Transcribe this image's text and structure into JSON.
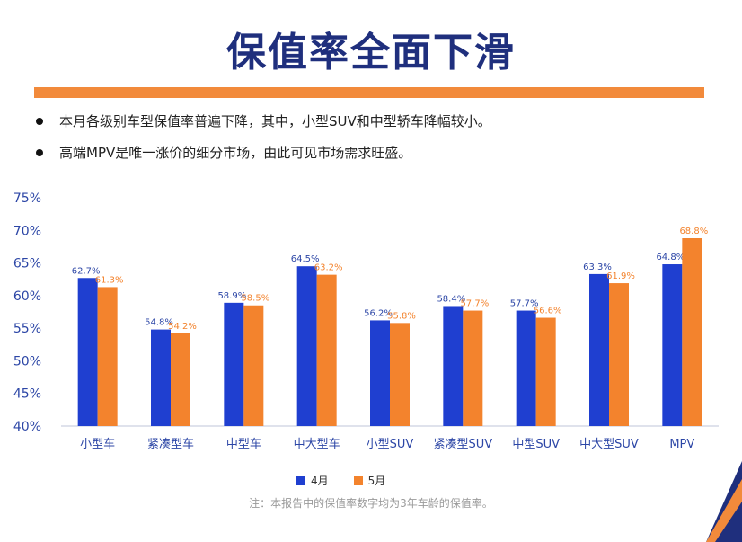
{
  "title": "保值率全面下滑",
  "bullets": [
    "本月各级别车型保值率普遍下降，其中，小型SUV和中型轿车降幅较小。",
    "高端MPV是唯一涨价的细分市场，由此可见市场需求旺盛。"
  ],
  "note": "注：本报告中的保值率数字均为3年车龄的保值率。",
  "colors": {
    "accent": "#f28a3b",
    "title": "#1f2f7d",
    "series_april": "#1f3fd0",
    "series_may": "#f3832d",
    "axis_text": "#2c46a6"
  },
  "chart_data": {
    "type": "bar",
    "categories": [
      "小型车",
      "紧凑型车",
      "中型车",
      "中大型车",
      "小型SUV",
      "紧凑型SUV",
      "中型SUV",
      "中大型SUV",
      "MPV"
    ],
    "series": [
      {
        "name": "4月",
        "values": [
          62.7,
          54.8,
          58.9,
          64.5,
          56.2,
          58.4,
          57.7,
          63.3,
          64.8
        ],
        "labels": [
          "62.7%",
          "54.8%",
          "58.9%",
          "64.5%",
          "56.2%",
          "58.4%",
          "57.7%",
          "63.3%",
          "64.8%"
        ]
      },
      {
        "name": "5月",
        "values": [
          61.3,
          54.2,
          58.5,
          63.2,
          55.8,
          57.7,
          56.6,
          61.9,
          68.8
        ],
        "labels": [
          "61.3%",
          "54.2%",
          "58.5%",
          "63.2%",
          "55.8%",
          "57.7%",
          "56.6%",
          "61.9%",
          "68.8%"
        ]
      }
    ],
    "yticks": [
      "40%",
      "45%",
      "50%",
      "55%",
      "60%",
      "65%",
      "70%",
      "75%"
    ],
    "ylim": [
      40,
      75
    ],
    "grid": false,
    "legend": "bottom-center"
  }
}
